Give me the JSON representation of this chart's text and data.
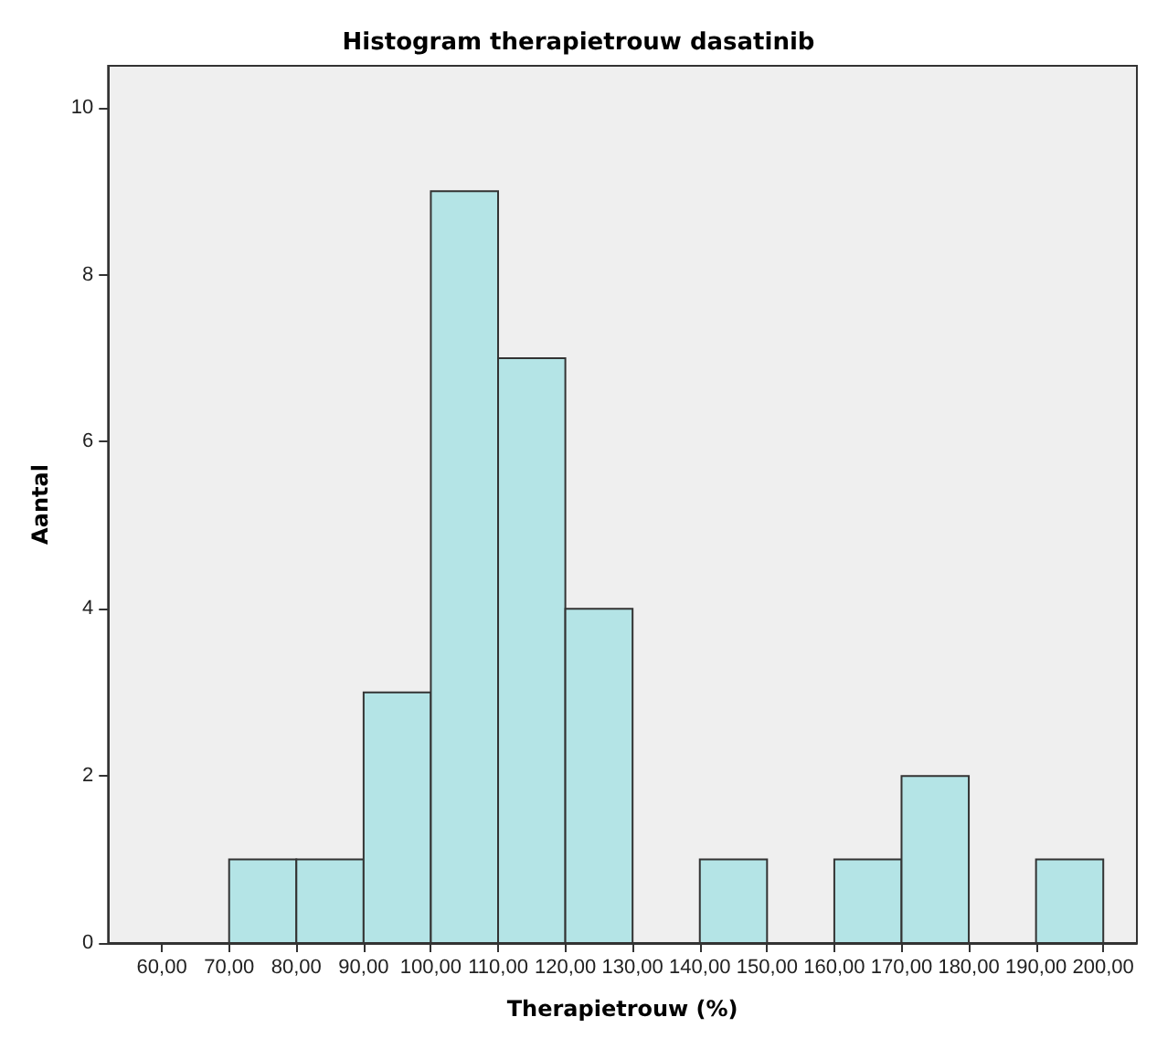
{
  "chart_data": {
    "type": "histogram",
    "title": "Histogram therapietrouw dasatinib",
    "xlabel": "Therapietrouw (%)",
    "ylabel": "Aantal",
    "bins": [
      60,
      70,
      80,
      90,
      100,
      110,
      120,
      130,
      140,
      150,
      160,
      170,
      180,
      190,
      200
    ],
    "values": [
      0,
      1,
      1,
      3,
      9,
      7,
      4,
      0,
      1,
      0,
      1,
      2,
      0,
      1
    ],
    "color": "#b4e4e6",
    "xlim": [
      52,
      205
    ],
    "xticks": [
      {
        "value": 60,
        "label": "60,00"
      },
      {
        "value": 70,
        "label": "70,00"
      },
      {
        "value": 80,
        "label": "80,00"
      },
      {
        "value": 90,
        "label": "90,00"
      },
      {
        "value": 100,
        "label": "100,00"
      },
      {
        "value": 110,
        "label": "110,00"
      },
      {
        "value": 120,
        "label": "120,00"
      },
      {
        "value": 130,
        "label": "130,00"
      },
      {
        "value": 140,
        "label": "140,00"
      },
      {
        "value": 150,
        "label": "150,00"
      },
      {
        "value": 160,
        "label": "160,00"
      },
      {
        "value": 170,
        "label": "170,00"
      },
      {
        "value": 180,
        "label": "180,00"
      },
      {
        "value": 190,
        "label": "190,00"
      },
      {
        "value": 200,
        "label": "200,00"
      }
    ],
    "ylim": [
      0,
      10.5
    ],
    "yticks": [
      0,
      2,
      4,
      6,
      8,
      10
    ],
    "grid": false
  }
}
